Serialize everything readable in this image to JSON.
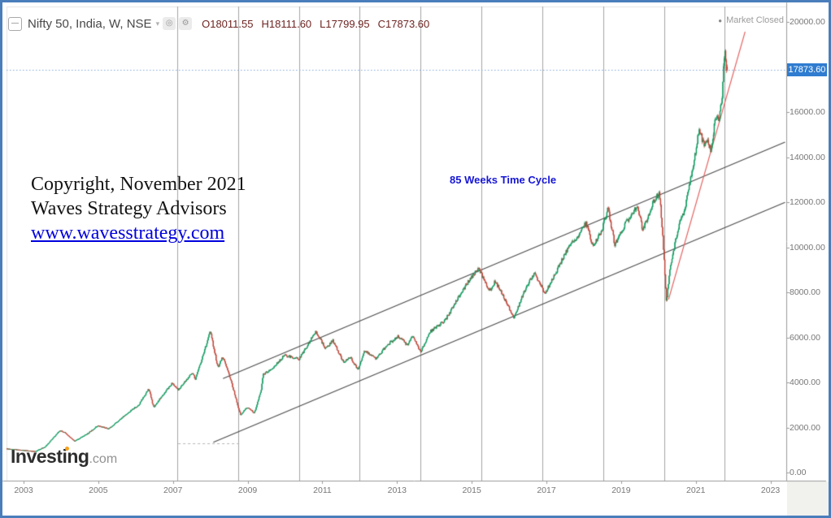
{
  "header": {
    "symbol": "Nifty 50, India, W, NSE",
    "dropdown_glyph": "▾",
    "snapshot_glyph": "◎",
    "settings_glyph": "⚙",
    "ohlc": {
      "o": {
        "k": "O",
        "v": "18011.55"
      },
      "h": {
        "k": "H",
        "v": "18111.60"
      },
      "l": {
        "k": "L",
        "v": "17799.95"
      },
      "c": {
        "k": "C",
        "v": "17873.60"
      }
    },
    "status": {
      "dot": "●",
      "label": "Market Closed"
    }
  },
  "annotations": {
    "copyright_line1": "Copyright, November 2021",
    "copyright_line2": "Waves Strategy Advisors",
    "copyright_link": "www.wavesstrategy.com",
    "cycle_label": "85 Weeks Time Cycle"
  },
  "price_badge": {
    "value": "17873.60"
  },
  "watermark": {
    "brand": "Investing",
    "suffix": ".com"
  },
  "chart_data": {
    "type": "candlestick",
    "title": "Nifty 50 weekly chart with 85-week time cycle lines and rising trend channel",
    "timeframe": "W",
    "exchange": "NSE",
    "x_axis": {
      "labels": [
        "2003",
        "2005",
        "2007",
        "2009",
        "2011",
        "2013",
        "2015",
        "2017",
        "2019",
        "2021",
        "2023"
      ],
      "unit": "year"
    },
    "y_axis": {
      "min": 0,
      "max": 20700,
      "tick_step": 2000,
      "ticks": [
        {
          "text": "20000.00",
          "value": 20000
        },
        {
          "text": "16000.00",
          "value": 16000
        },
        {
          "text": "14000.00",
          "value": 14000
        },
        {
          "text": "12000.00",
          "value": 12000
        },
        {
          "text": "10000.00",
          "value": 10000
        },
        {
          "text": "8000.00",
          "value": 8000
        },
        {
          "text": "6000.00",
          "value": 6000
        },
        {
          "text": "4000.00",
          "value": 4000
        },
        {
          "text": "2000.00",
          "value": 2000
        },
        {
          "text": "0.00",
          "value": 0
        }
      ]
    },
    "start_year": 2002.54,
    "end_year": 2021.84,
    "weeks_per_year": 52.18,
    "series_anchors": [
      [
        2002.54,
        1070
      ],
      [
        2002.9,
        1010
      ],
      [
        2003.33,
        940
      ],
      [
        2003.6,
        1150
      ],
      [
        2004.0,
        1880
      ],
      [
        2004.1,
        1800
      ],
      [
        2004.38,
        1390
      ],
      [
        2004.75,
        1750
      ],
      [
        2005.0,
        2080
      ],
      [
        2005.3,
        1950
      ],
      [
        2005.85,
        2700
      ],
      [
        2006.1,
        3000
      ],
      [
        2006.37,
        3720
      ],
      [
        2006.5,
        2900
      ],
      [
        2006.75,
        3450
      ],
      [
        2007.0,
        3970
      ],
      [
        2007.15,
        3650
      ],
      [
        2007.55,
        4450
      ],
      [
        2007.62,
        4120
      ],
      [
        2008.02,
        6280
      ],
      [
        2008.22,
        4650
      ],
      [
        2008.35,
        5150
      ],
      [
        2008.55,
        4200
      ],
      [
        2008.8,
        2700
      ],
      [
        2008.83,
        2550
      ],
      [
        2009.0,
        2900
      ],
      [
        2009.2,
        2650
      ],
      [
        2009.38,
        3650
      ],
      [
        2009.43,
        4350
      ],
      [
        2009.7,
        4650
      ],
      [
        2010.0,
        5200
      ],
      [
        2010.4,
        5050
      ],
      [
        2010.85,
        6280
      ],
      [
        2011.1,
        5500
      ],
      [
        2011.3,
        5850
      ],
      [
        2011.6,
        4850
      ],
      [
        2011.75,
        5150
      ],
      [
        2011.97,
        4560
      ],
      [
        2012.15,
        5400
      ],
      [
        2012.45,
        5050
      ],
      [
        2012.75,
        5650
      ],
      [
        2013.05,
        6050
      ],
      [
        2013.3,
        5650
      ],
      [
        2013.42,
        6100
      ],
      [
        2013.65,
        5330
      ],
      [
        2013.9,
        6250
      ],
      [
        2014.3,
        6750
      ],
      [
        2014.95,
        8550
      ],
      [
        2015.2,
        9070
      ],
      [
        2015.5,
        8050
      ],
      [
        2015.65,
        8500
      ],
      [
        2016.15,
        6870
      ],
      [
        2016.45,
        8150
      ],
      [
        2016.7,
        8850
      ],
      [
        2016.98,
        7950
      ],
      [
        2017.35,
        9150
      ],
      [
        2017.6,
        9950
      ],
      [
        2017.8,
        10350
      ],
      [
        2018.08,
        11090
      ],
      [
        2018.27,
        10020
      ],
      [
        2018.5,
        10750
      ],
      [
        2018.67,
        11720
      ],
      [
        2018.85,
        10100
      ],
      [
        2019.1,
        10950
      ],
      [
        2019.45,
        11850
      ],
      [
        2019.6,
        10750
      ],
      [
        2019.9,
        12100
      ],
      [
        2020.05,
        12380
      ],
      [
        2020.1,
        11300
      ],
      [
        2020.18,
        9200
      ],
      [
        2020.23,
        7600
      ],
      [
        2020.35,
        9300
      ],
      [
        2020.6,
        11250
      ],
      [
        2020.73,
        11650
      ],
      [
        2020.8,
        12400
      ],
      [
        2021.0,
        14100
      ],
      [
        2021.1,
        15250
      ],
      [
        2021.25,
        14450
      ],
      [
        2021.33,
        14800
      ],
      [
        2021.42,
        14350
      ],
      [
        2021.55,
        15750
      ],
      [
        2021.65,
        15700
      ],
      [
        2021.72,
        16650
      ],
      [
        2021.78,
        18450
      ],
      [
        2021.8,
        18550
      ],
      [
        2021.84,
        17873.6
      ]
    ],
    "last_candle": {
      "open": 18011.55,
      "high": 18111.6,
      "low": 17799.95,
      "close": 17873.6
    },
    "current_price": 17873.6,
    "cycle_lines": {
      "period_weeks": 85,
      "start_year": 2007.115,
      "interval_years": 1.6292,
      "count": 10
    },
    "channel_upper": {
      "t1": 2008.34,
      "p1": 4170,
      "t2": 2023.39,
      "p2": 14670
    },
    "channel_lower": {
      "t1": 2008.08,
      "p1": 1340,
      "t2": 2023.39,
      "p2": 11990
    },
    "red_trendline": {
      "t1": 2020.27,
      "p1": 7680,
      "t2": 2022.32,
      "p2": 19565
    },
    "dashed_level": {
      "t1": 2007.14,
      "t2": 2008.8,
      "price": 1290
    },
    "colors": {
      "up": "#0e9a5f",
      "down": "#bf4539",
      "grid": "#a3a3a3",
      "channel": "#4a4a4a",
      "trend_red": "#e4605f",
      "price_line": "#7fa6d9",
      "axis": "#9b9b9b",
      "plot_border": "#e4e4e4"
    }
  }
}
